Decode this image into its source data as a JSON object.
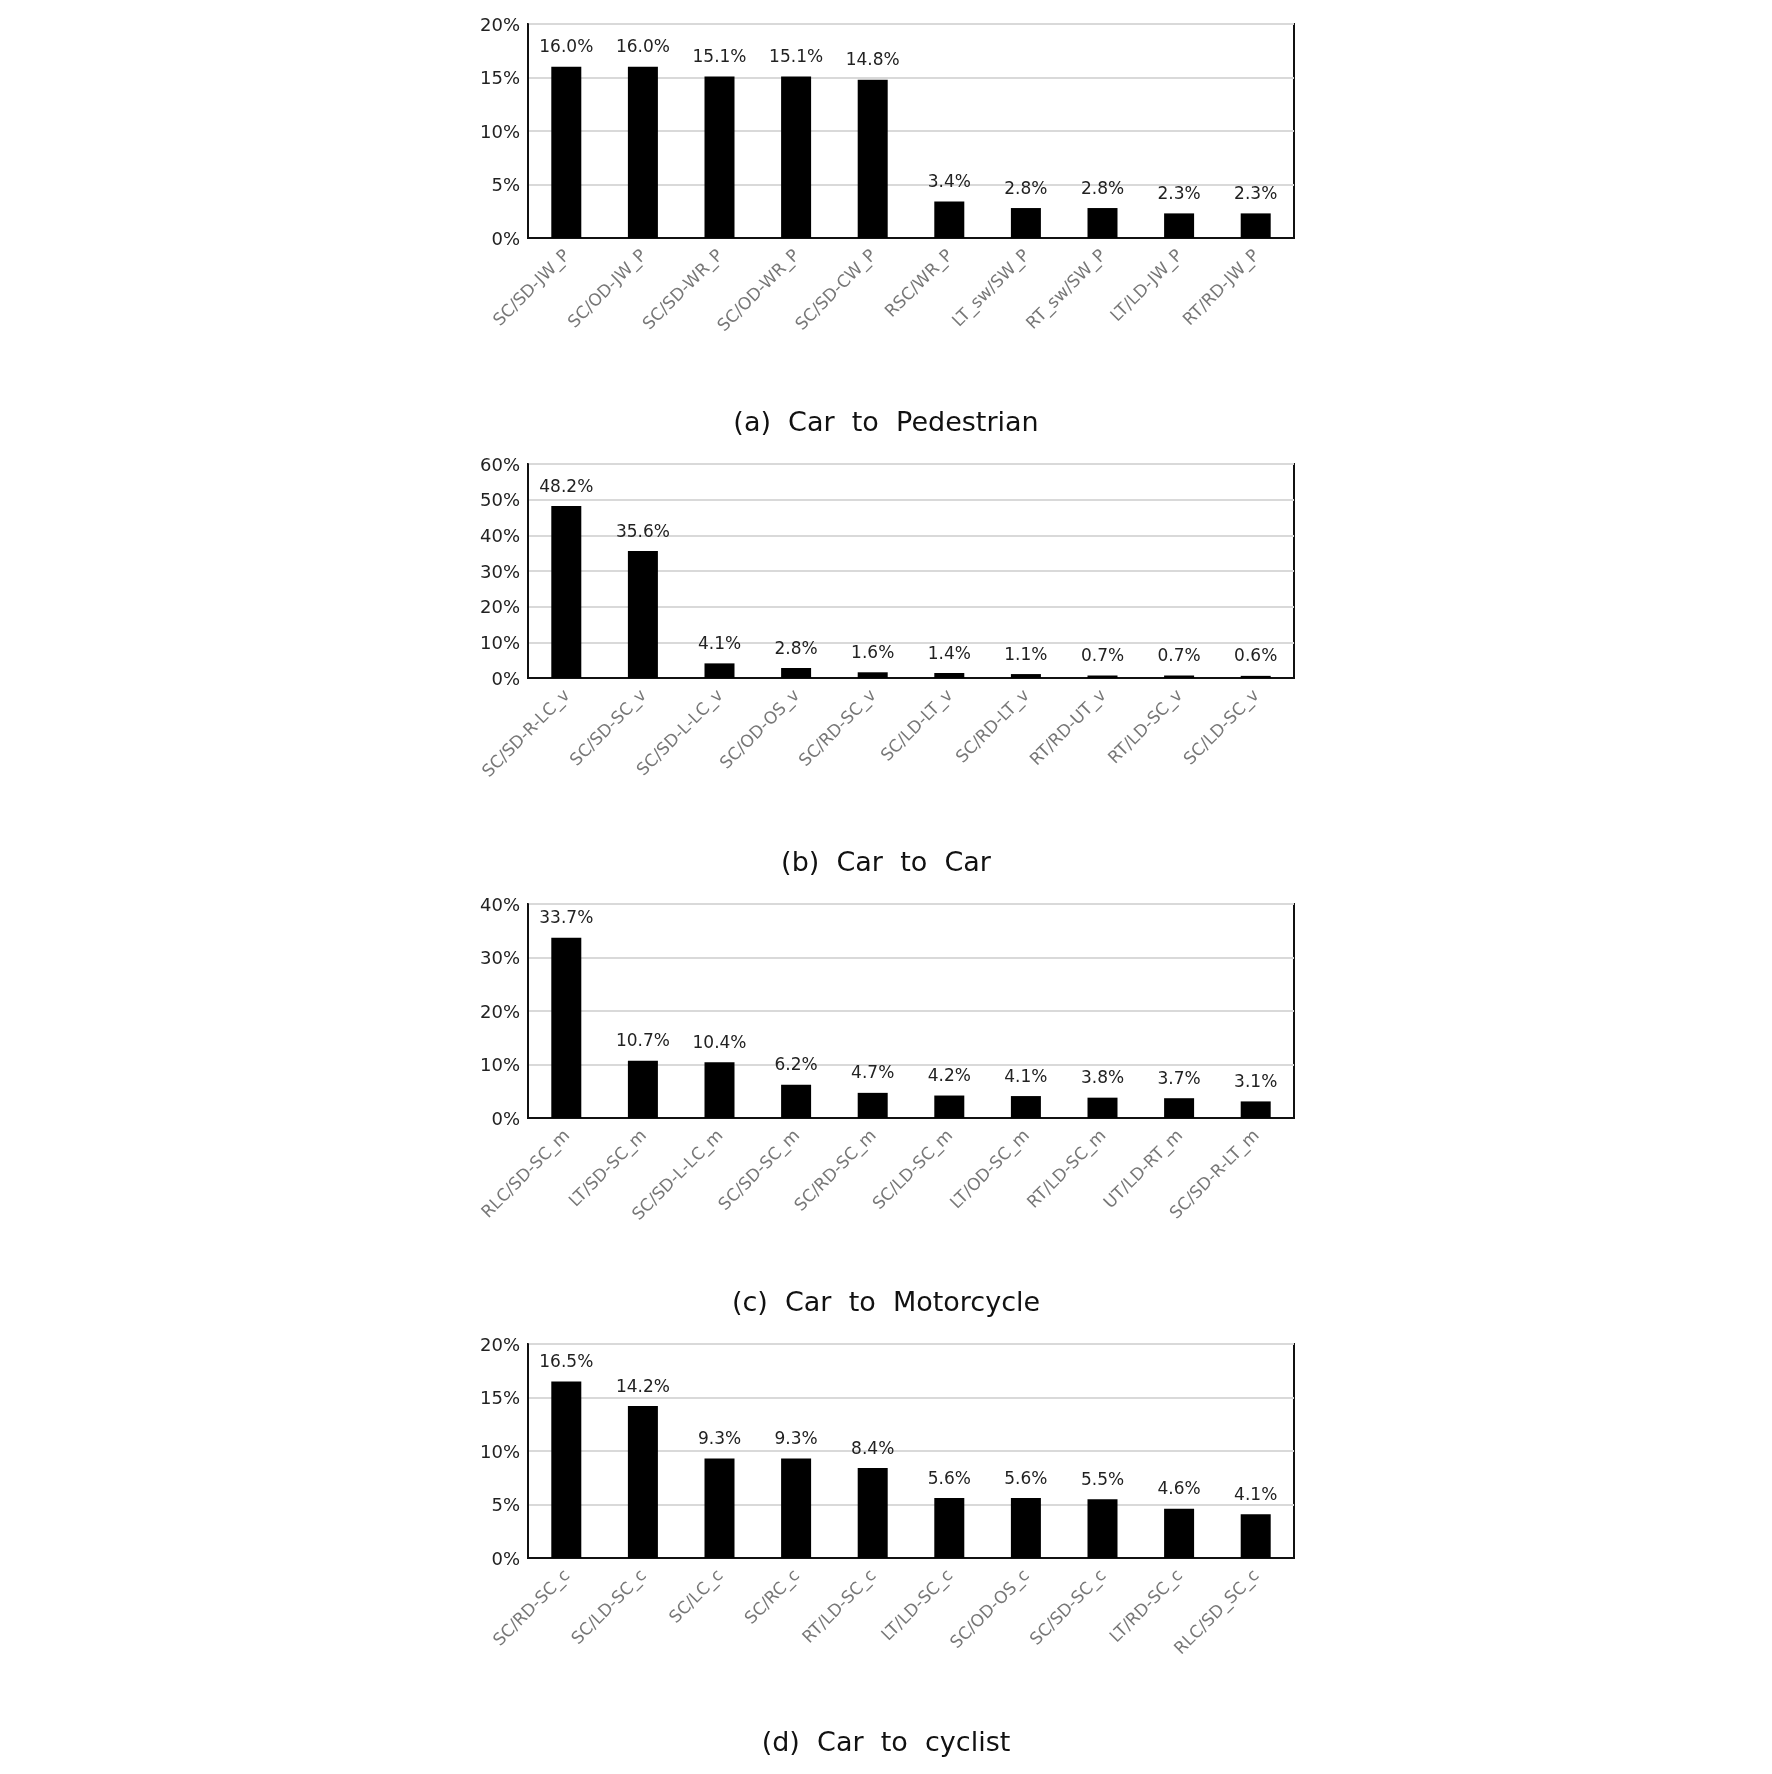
{
  "chart_data": [
    {
      "type": "bar",
      "title": "(a)  Car  to  Pedestrian",
      "categories": [
        "SC/SD-JW_P",
        "SC/OD-JW_P",
        "SC/SD-WR_P",
        "SC/OD-WR_P",
        "SC/SD-CW_P",
        "RSC/WR_P",
        "LT_sw/SW_P",
        "RT_sw/SW_P",
        "LT/LD-JW_P",
        "RT/RD-JW_P"
      ],
      "values": [
        16.0,
        16.0,
        15.1,
        15.1,
        14.8,
        3.4,
        2.8,
        2.8,
        2.3,
        2.3
      ],
      "value_labels": [
        "16.0%",
        "16.0%",
        "15.1%",
        "15.1%",
        "14.8%",
        "3.4%",
        "2.8%",
        "2.8%",
        "2.3%",
        "2.3%"
      ],
      "color": "#000000",
      "ylim": [
        0,
        20
      ],
      "yticks": [
        {
          "value": 0,
          "label": "0%"
        },
        {
          "value": 5,
          "label": "5%"
        },
        {
          "value": 10,
          "label": "10%"
        },
        {
          "value": 15,
          "label": "15%"
        },
        {
          "value": 20,
          "label": "20%"
        }
      ],
      "grid": "y"
    },
    {
      "type": "bar",
      "title": "(b)  Car  to  Car",
      "categories": [
        "SC/SD-R-LC_v",
        "SC/SD-SC_v",
        "SC/SD-L-LC_v",
        "SC/OD-OS_v",
        "SC/RD-SC_v",
        "SC/LD-LT_v",
        "SC/RD-LT_v",
        "RT/RD-UT_v",
        "RT/LD-SC_v",
        "SC/LD-SC_v"
      ],
      "values": [
        48.2,
        35.6,
        4.1,
        2.8,
        1.6,
        1.4,
        1.1,
        0.7,
        0.7,
        0.6
      ],
      "value_labels": [
        "48.2%",
        "35.6%",
        "4.1%",
        "2.8%",
        "1.6%",
        "1.4%",
        "1.1%",
        "0.7%",
        "0.7%",
        "0.6%"
      ],
      "color": "#000000",
      "ylim": [
        0,
        60
      ],
      "yticks": [
        {
          "value": 0,
          "label": "0%"
        },
        {
          "value": 10,
          "label": "10%"
        },
        {
          "value": 20,
          "label": "20%"
        },
        {
          "value": 30,
          "label": "30%"
        },
        {
          "value": 40,
          "label": "40%"
        },
        {
          "value": 50,
          "label": "50%"
        },
        {
          "value": 60,
          "label": "60%"
        }
      ],
      "grid": "y"
    },
    {
      "type": "bar",
      "title": "(c)  Car  to  Motorcycle",
      "categories": [
        "RLC/SD-SC_m",
        "LT/SD-SC_m",
        "SC/SD-L-LC_m",
        "SC/SD-SC_m",
        "SC/RD-SC_m",
        "SC/LD-SC_m",
        "LT/OD-SC_m",
        "RT/LD-SC_m",
        "UT/LD-RT_m",
        "SC/SD-R-LT_m"
      ],
      "values": [
        33.7,
        10.7,
        10.4,
        6.2,
        4.7,
        4.2,
        4.1,
        3.8,
        3.7,
        3.1
      ],
      "value_labels": [
        "33.7%",
        "10.7%",
        "10.4%",
        "6.2%",
        "4.7%",
        "4.2%",
        "4.1%",
        "3.8%",
        "3.7%",
        "3.1%"
      ],
      "color": "#000000",
      "ylim": [
        0,
        40
      ],
      "yticks": [
        {
          "value": 0,
          "label": "0%"
        },
        {
          "value": 10,
          "label": "10%"
        },
        {
          "value": 20,
          "label": "20%"
        },
        {
          "value": 30,
          "label": "30%"
        },
        {
          "value": 40,
          "label": "40%"
        }
      ],
      "grid": "y"
    },
    {
      "type": "bar",
      "title": "(d)  Car  to  cyclist",
      "categories": [
        "SC/RD-SC_c",
        "SC/LD-SC_c",
        "SC/LC_c",
        "SC/RC_c",
        "RT/LD-SC_c",
        "LT/LD-SC_c",
        "SC/OD-OS_c",
        "SC/SD-SC_c",
        "LT/RD-SC_c",
        "RLC/SD_SC_c"
      ],
      "values": [
        16.5,
        14.2,
        9.3,
        9.3,
        8.4,
        5.6,
        5.6,
        5.5,
        4.6,
        4.1
      ],
      "value_labels": [
        "16.5%",
        "14.2%",
        "9.3%",
        "9.3%",
        "8.4%",
        "5.6%",
        "5.6%",
        "5.5%",
        "4.6%",
        "4.1%"
      ],
      "color": "#000000",
      "ylim": [
        0,
        20
      ],
      "yticks": [
        {
          "value": 0,
          "label": "0%"
        },
        {
          "value": 5,
          "label": "5%"
        },
        {
          "value": 10,
          "label": "10%"
        },
        {
          "value": 15,
          "label": "15%"
        },
        {
          "value": 20,
          "label": "20%"
        }
      ],
      "grid": "y"
    }
  ]
}
